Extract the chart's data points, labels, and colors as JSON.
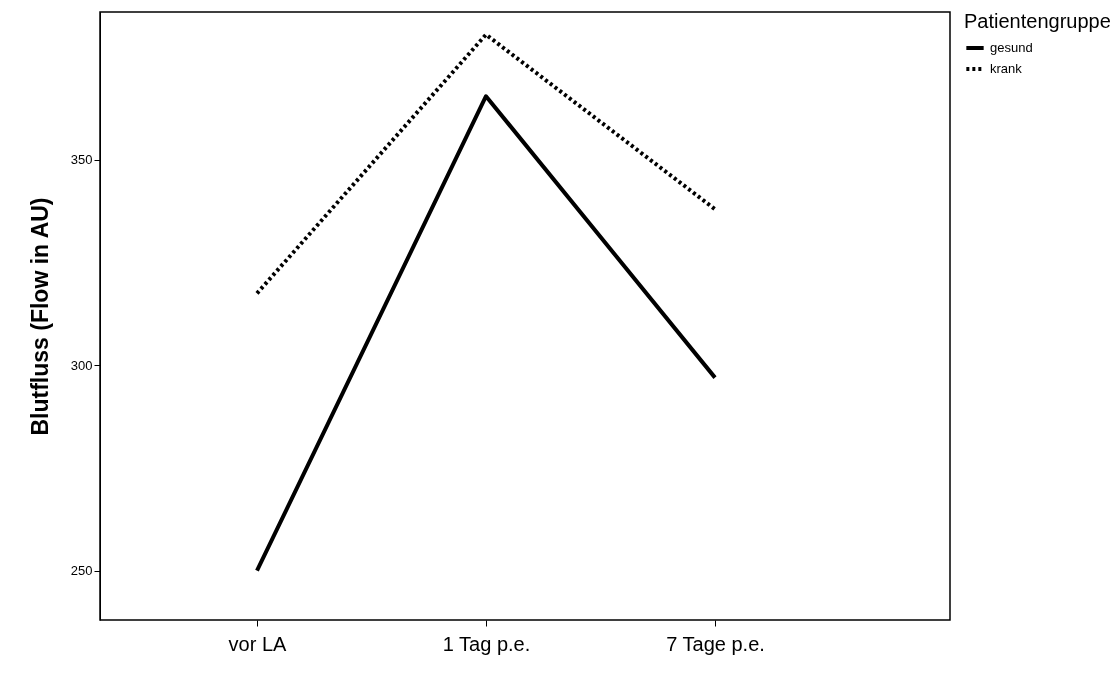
{
  "chart_data": {
    "type": "line",
    "ylabel": "Blutfluss (Flow in AU)",
    "legend_title": "Patientengruppe",
    "legend": "top right",
    "grid": false,
    "categories": [
      "vor LA",
      "1 Tag p.e.",
      "7 Tage p.e."
    ],
    "ylim": [
      238,
      386
    ],
    "yticks": [
      250,
      300,
      350
    ],
    "series": [
      {
        "name": "gesund",
        "color": "#000000",
        "line_style": "solid",
        "values": [
          250,
          365.5,
          297
        ]
      },
      {
        "name": "krank",
        "color": "#000000",
        "line_style": "dotted",
        "values": [
          317.5,
          380.5,
          338
        ]
      }
    ]
  }
}
